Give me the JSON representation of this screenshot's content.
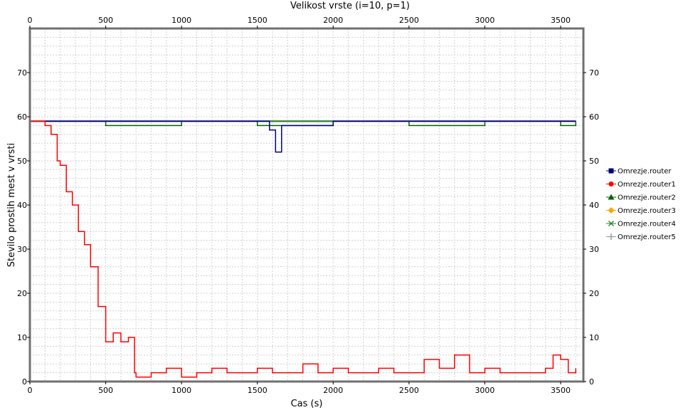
{
  "chart_data": {
    "type": "line",
    "title": "Velikost vrste (i=10, p=1)",
    "xlabel": "Cas (s)",
    "ylabel": "Stevilo prostih mest v vrsti",
    "xlim": [
      0,
      3650
    ],
    "ylim": [
      0,
      80
    ],
    "xticks": [
      0,
      500,
      1000,
      1500,
      2000,
      2500,
      3000,
      3500
    ],
    "yticks": [
      0,
      10,
      20,
      30,
      40,
      50,
      60,
      70
    ],
    "grid": true,
    "legend_position": "right",
    "series": [
      {
        "name": "Omrezje.router",
        "color": "#000080",
        "marker": "square",
        "x": [
          0,
          500,
          1000,
          1500,
          1580,
          1620,
          1660,
          2000,
          2500,
          3000,
          3500,
          3600
        ],
        "y": [
          59,
          59,
          59,
          59,
          57,
          52,
          58,
          59,
          59,
          59,
          59,
          59
        ]
      },
      {
        "name": "Omrezje.router1",
        "color": "#ff0000",
        "marker": "circle",
        "x": [
          0,
          100,
          140,
          180,
          200,
          240,
          280,
          320,
          360,
          400,
          450,
          500,
          550,
          600,
          650,
          690,
          700,
          800,
          900,
          1000,
          1100,
          1200,
          1300,
          1400,
          1500,
          1600,
          1700,
          1800,
          1900,
          2000,
          2100,
          2200,
          2300,
          2400,
          2500,
          2600,
          2700,
          2800,
          2900,
          3000,
          3100,
          3200,
          3300,
          3400,
          3450,
          3500,
          3550,
          3600
        ],
        "y": [
          59,
          58,
          56,
          50,
          49,
          43,
          40,
          34,
          31,
          26,
          17,
          9,
          11,
          9,
          10,
          2,
          1,
          2,
          3,
          1,
          2,
          3,
          2,
          2,
          3,
          2,
          2,
          4,
          2,
          3,
          2,
          2,
          3,
          2,
          2,
          5,
          3,
          6,
          2,
          3,
          2,
          2,
          2,
          3,
          6,
          5,
          2,
          3
        ]
      },
      {
        "name": "Omrezje.router2",
        "color": "#006400",
        "marker": "triangle",
        "x": [
          0,
          500,
          1000,
          1500,
          2000,
          2500,
          3000,
          3500,
          3600
        ],
        "y": [
          59,
          58,
          59,
          58,
          59,
          58,
          59,
          58,
          59
        ]
      },
      {
        "name": "Omrezje.router3",
        "color": "#ffa500",
        "marker": "diamond",
        "x": [
          0,
          500,
          1000,
          1500,
          2000,
          2500,
          3000,
          3500,
          3600
        ],
        "y": [
          59,
          59,
          59,
          59,
          59,
          59,
          59,
          59,
          59
        ]
      },
      {
        "name": "Omrezje.router4",
        "color": "#228b22",
        "marker": "cross",
        "x": [
          0,
          500,
          1000,
          1500,
          2000,
          2500,
          3000,
          3500,
          3600
        ],
        "y": [
          59,
          59,
          59,
          59,
          59,
          59,
          59,
          59,
          59
        ]
      },
      {
        "name": "Omrezje.router5",
        "color": "#a0a0a0",
        "marker": "plus",
        "x": [
          0,
          500,
          1000,
          1500,
          2000,
          2500,
          3000,
          3500,
          3600
        ],
        "y": [
          59,
          59,
          59,
          59,
          59,
          59,
          59,
          59,
          59
        ]
      }
    ]
  }
}
